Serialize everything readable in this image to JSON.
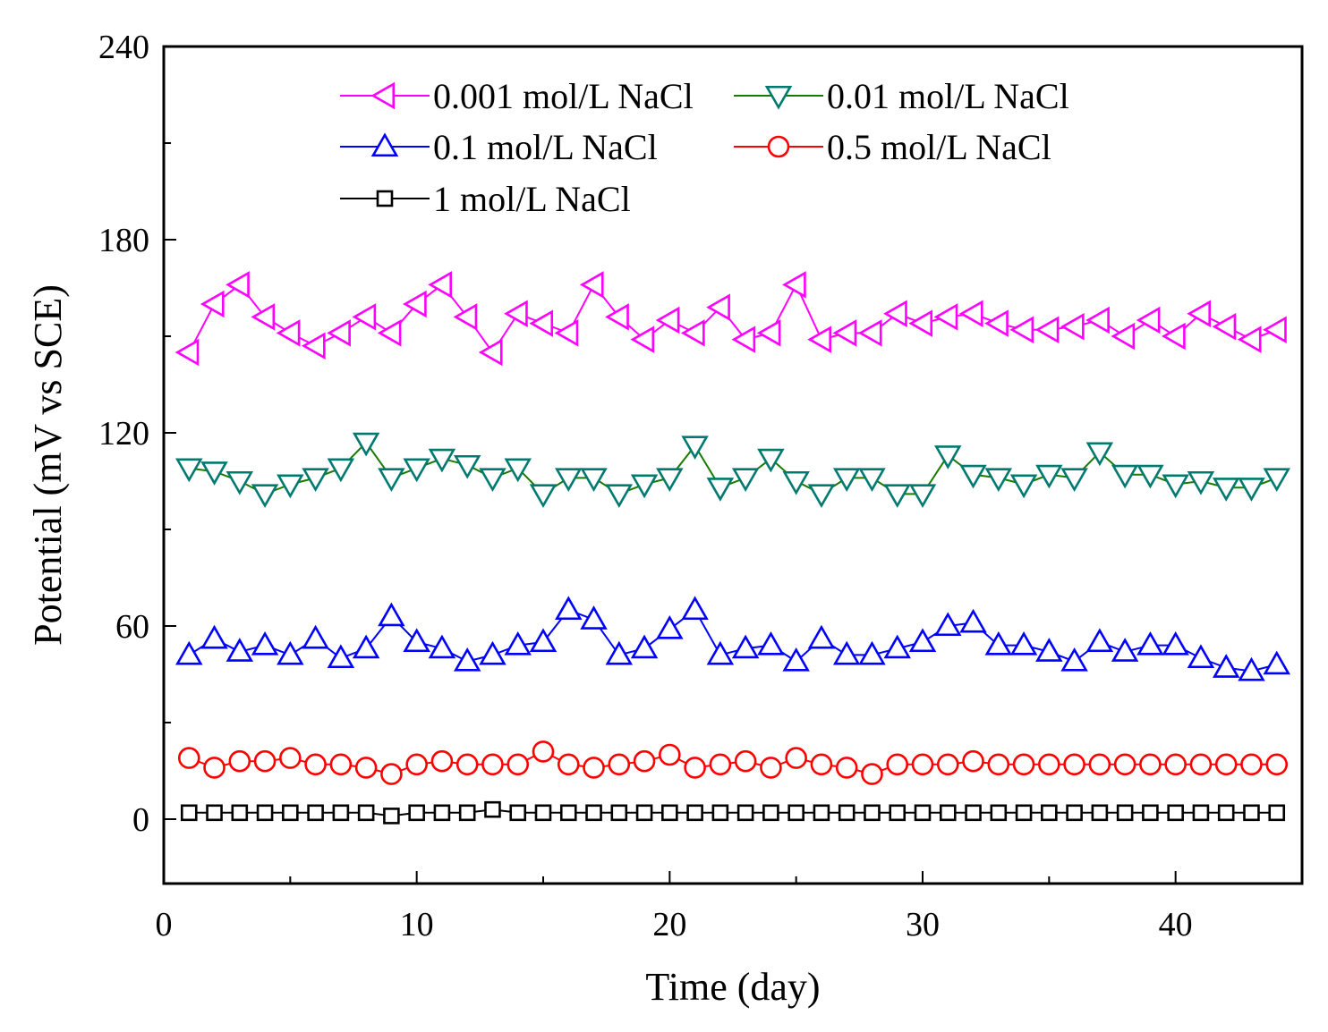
{
  "chart_data": {
    "type": "line",
    "title": "",
    "xlabel": "Time (day)",
    "ylabel": "Potential (mV vs SCE)",
    "xlim": [
      0,
      45
    ],
    "ylim": [
      -20,
      240
    ],
    "xticks": [
      0,
      10,
      20,
      30,
      40
    ],
    "yticks": [
      0,
      60,
      120,
      180,
      240
    ],
    "x": [
      1,
      2,
      3,
      4,
      5,
      6,
      7,
      8,
      9,
      10,
      11,
      12,
      13,
      14,
      15,
      16,
      17,
      18,
      19,
      20,
      21,
      22,
      23,
      24,
      25,
      26,
      27,
      28,
      29,
      30,
      31,
      32,
      33,
      34,
      35,
      36,
      37,
      38,
      39,
      40,
      41,
      42,
      43,
      44
    ],
    "series": [
      {
        "name": "0.001 mol/L NaCl",
        "color": "#ff00ff",
        "marker": "triangle-left",
        "values": [
          145,
          160,
          166,
          156,
          151,
          147,
          151,
          156,
          151,
          160,
          166,
          156,
          145,
          157,
          154,
          151,
          166,
          156,
          149,
          155,
          151,
          159,
          149,
          151,
          166,
          149,
          151,
          151,
          157,
          154,
          156,
          157,
          154,
          152,
          152,
          153,
          155,
          150,
          155,
          150,
          157,
          153,
          149,
          152
        ]
      },
      {
        "name": "0.01 mol/L NaCl",
        "color": "#007a70",
        "line_color": "#1a7a00",
        "marker": "triangle-down",
        "values": [
          109,
          108,
          105,
          101,
          104,
          106,
          109,
          117,
          106,
          109,
          112,
          110,
          106,
          109,
          101,
          106,
          106,
          101,
          104,
          106,
          116,
          103,
          106,
          112,
          105,
          101,
          106,
          106,
          101,
          101,
          113,
          107,
          106,
          104,
          107,
          106,
          114,
          107,
          107,
          104,
          105,
          103,
          103,
          106
        ]
      },
      {
        "name": "0.1 mol/L NaCl",
        "color": "#0000ff",
        "marker": "triangle-up",
        "values": [
          51,
          56,
          52,
          54,
          51,
          56,
          50,
          53,
          63,
          55,
          53,
          49,
          51,
          54,
          55,
          65,
          62,
          51,
          53,
          59,
          65,
          51,
          53,
          54,
          49,
          56,
          51,
          51,
          53,
          55,
          60,
          61,
          54,
          54,
          52,
          49,
          55,
          52,
          54,
          54,
          50,
          47,
          46,
          48
        ]
      },
      {
        "name": "0.5 mol/L NaCl",
        "color": "#ff0000",
        "marker": "circle",
        "values": [
          19,
          16,
          18,
          18,
          19,
          17,
          17,
          16,
          14,
          17,
          18,
          17,
          17,
          17,
          21,
          17,
          16,
          17,
          18,
          20,
          16,
          17,
          18,
          16,
          19,
          17,
          16,
          14,
          17,
          17,
          17,
          18,
          17,
          17,
          17,
          17,
          17,
          17,
          17,
          17,
          17,
          17,
          17,
          17
        ]
      },
      {
        "name": "1 mol/L NaCl",
        "color": "#000000",
        "marker": "square",
        "values": [
          2,
          2,
          2,
          2,
          2,
          2,
          2,
          2,
          1,
          2,
          2,
          2,
          3,
          2,
          2,
          2,
          2,
          2,
          2,
          2,
          2,
          2,
          2,
          2,
          2,
          2,
          2,
          2,
          2,
          2,
          2,
          2,
          2,
          2,
          2,
          2,
          2,
          2,
          2,
          2,
          2,
          2,
          2,
          2
        ]
      }
    ],
    "legend": {
      "placement": "top-left",
      "entries": [
        "0.001 mol/L NaCl",
        "0.01 mol/L NaCl",
        "0.1 mol/L NaCl",
        "0.5 mol/L NaCl",
        "1 mol/L NaCl"
      ]
    }
  }
}
